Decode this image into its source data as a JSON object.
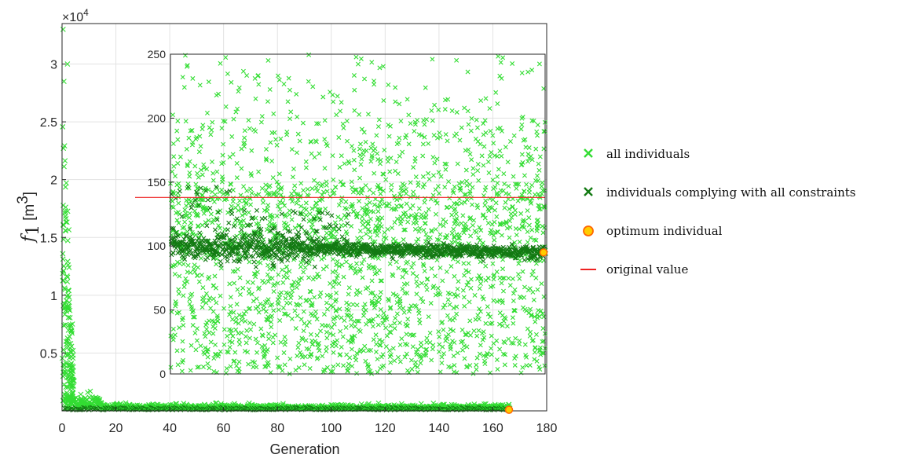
{
  "chart_data": {
    "type": "scatter",
    "main": {
      "xlabel": "Generation",
      "ylabel": "f",
      "ylabel_sub": "1",
      "ylabel_unit_base": "[m",
      "ylabel_unit_exp": "3",
      "ylabel_unit_close": "]",
      "exponent_base": "×10",
      "exponent_power": "4",
      "xlim": [
        0,
        180
      ],
      "ylim": [
        0,
        33500
      ],
      "xticks": [
        0,
        20,
        40,
        60,
        80,
        100,
        120,
        140,
        160,
        180
      ],
      "xticklabels": [
        "0",
        "20",
        "40",
        "60",
        "80",
        "100",
        "120",
        "140",
        "160",
        "180"
      ],
      "yticks": [
        5000,
        10000,
        15000,
        20000,
        25000,
        30000
      ],
      "yticklabels": [
        "0.5",
        "1",
        "1.5",
        "2",
        "2.5",
        "3"
      ],
      "grid": true,
      "optimum": {
        "x": 166,
        "y": 95
      }
    },
    "inset": {
      "xlim": [
        40,
        166
      ],
      "ylim": [
        0,
        250
      ],
      "yticks": [
        0,
        50,
        100,
        150,
        200,
        250
      ],
      "yticklabels": [
        "0",
        "50",
        "100",
        "150",
        "200",
        "250"
      ],
      "grid": true,
      "original_value": 138,
      "optimum": {
        "x": 166,
        "y": 95
      }
    },
    "series": [
      {
        "name": "all individuals",
        "color": "#33dd33",
        "marker": "x"
      },
      {
        "name": "individuals complying with all constraints",
        "color": "#137a13",
        "marker": "x"
      },
      {
        "name": "optimum individual",
        "color": "#ffcc00",
        "edge": "#ff6600",
        "marker": "circle"
      },
      {
        "name": "original value",
        "color": "#ee2222",
        "marker": "line"
      }
    ],
    "legend_position": "right"
  }
}
